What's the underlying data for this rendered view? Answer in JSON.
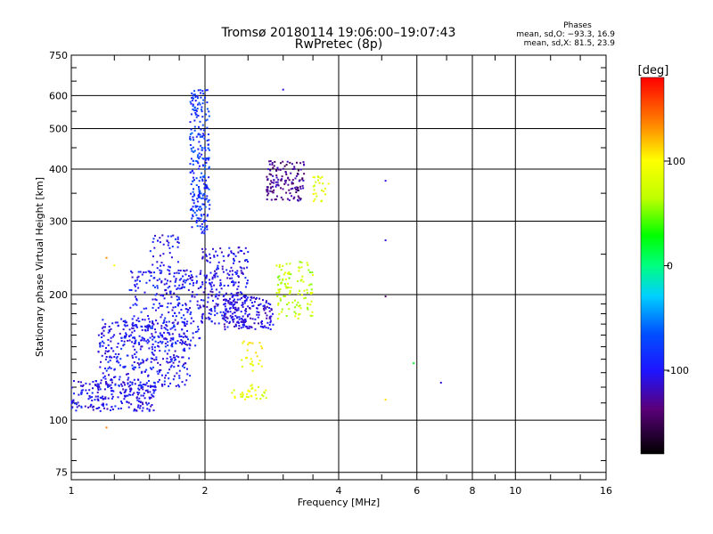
{
  "chart_data": {
    "type": "scatter",
    "title": "Tromsø 20180114  19:06:00–19:07:43",
    "subtitle": "RwPretec (8p)",
    "stats": {
      "heading": "Phases",
      "line_o": "mean, sd,O: −93.3, 16.9",
      "line_x": "mean, sd,X:  81.5, 23.9"
    },
    "xlabel": "Frequency [MHz]",
    "ylabel": "Stationary phase Virtual Height [km]",
    "xscale": "log2",
    "yscale": "log",
    "xlim": [
      1,
      16
    ],
    "ylim": [
      72,
      750
    ],
    "xticks": [
      {
        "value": 1,
        "label": "1"
      },
      {
        "value": 2,
        "label": "2"
      },
      {
        "value": 4,
        "label": "4"
      },
      {
        "value": 6,
        "label": "6"
      },
      {
        "value": 8,
        "label": "8"
      },
      {
        "value": 10,
        "label": "10"
      },
      {
        "value": 16,
        "label": "16"
      }
    ],
    "yticks": [
      {
        "value": 75,
        "label": "75"
      },
      {
        "value": 100,
        "label": "100"
      },
      {
        "value": 200,
        "label": "200"
      },
      {
        "value": 300,
        "label": "300"
      },
      {
        "value": 400,
        "label": "400"
      },
      {
        "value": 500,
        "label": "500"
      },
      {
        "value": 600,
        "label": "600"
      },
      {
        "value": 750,
        "label": "750"
      }
    ],
    "grid": true,
    "colorbar": {
      "label": "[deg]",
      "min": -180,
      "max": 180,
      "ticks": [
        {
          "value": 100,
          "label": "100"
        },
        {
          "value": 0,
          "label": "0"
        },
        {
          "value": -100,
          "label": "-100"
        }
      ]
    },
    "clusters": [
      {
        "fmin": 1.0,
        "fmax": 1.55,
        "hmin": 105,
        "hmax": 125,
        "phase": -105,
        "n": 220
      },
      {
        "fmin": 1.15,
        "fmax": 1.85,
        "hmin": 120,
        "hmax": 175,
        "phase": -100,
        "n": 380
      },
      {
        "fmin": 1.35,
        "fmax": 1.95,
        "hmin": 150,
        "hmax": 230,
        "phase": -100,
        "n": 260
      },
      {
        "fmin": 1.5,
        "fmax": 1.75,
        "hmin": 200,
        "hmax": 280,
        "phase": -100,
        "n": 60
      },
      {
        "fmin": 1.85,
        "fmax": 2.05,
        "hmin": 280,
        "hmax": 620,
        "phase": -85,
        "n": 260
      },
      {
        "fmin": 1.95,
        "fmax": 2.5,
        "hmin": 170,
        "hmax": 260,
        "phase": -105,
        "n": 250
      },
      {
        "fmin": 2.2,
        "fmax": 2.85,
        "hmin": 165,
        "hmax": 200,
        "phase": -110,
        "n": 160
      },
      {
        "fmin": 2.75,
        "fmax": 3.35,
        "hmin": 335,
        "hmax": 420,
        "phase": -135,
        "n": 140
      },
      {
        "fmin": 2.9,
        "fmax": 3.5,
        "hmin": 175,
        "hmax": 240,
        "phase": 70,
        "n": 110
      },
      {
        "fmin": 3.5,
        "fmax": 3.8,
        "hmin": 330,
        "hmax": 385,
        "phase": 90,
        "n": 25
      },
      {
        "fmin": 2.3,
        "fmax": 2.75,
        "hmin": 112,
        "hmax": 122,
        "phase": 85,
        "n": 35
      },
      {
        "fmin": 2.4,
        "fmax": 2.7,
        "hmin": 130,
        "hmax": 155,
        "phase": 95,
        "n": 25
      }
    ],
    "isolated_points": [
      {
        "x": 5.1,
        "y": 375,
        "phase": -110
      },
      {
        "x": 5.1,
        "y": 270,
        "phase": -110
      },
      {
        "x": 5.1,
        "y": 198,
        "phase": -150
      },
      {
        "x": 6.8,
        "y": 123,
        "phase": -110
      },
      {
        "x": 5.1,
        "y": 112,
        "phase": 110
      },
      {
        "x": 1.2,
        "y": 245,
        "phase": 135
      },
      {
        "x": 1.25,
        "y": 235,
        "phase": 100
      },
      {
        "x": 1.2,
        "y": 96,
        "phase": 140
      },
      {
        "x": 5.9,
        "y": 137,
        "phase": 20
      },
      {
        "x": 3.0,
        "y": 620,
        "phase": -110
      }
    ]
  }
}
